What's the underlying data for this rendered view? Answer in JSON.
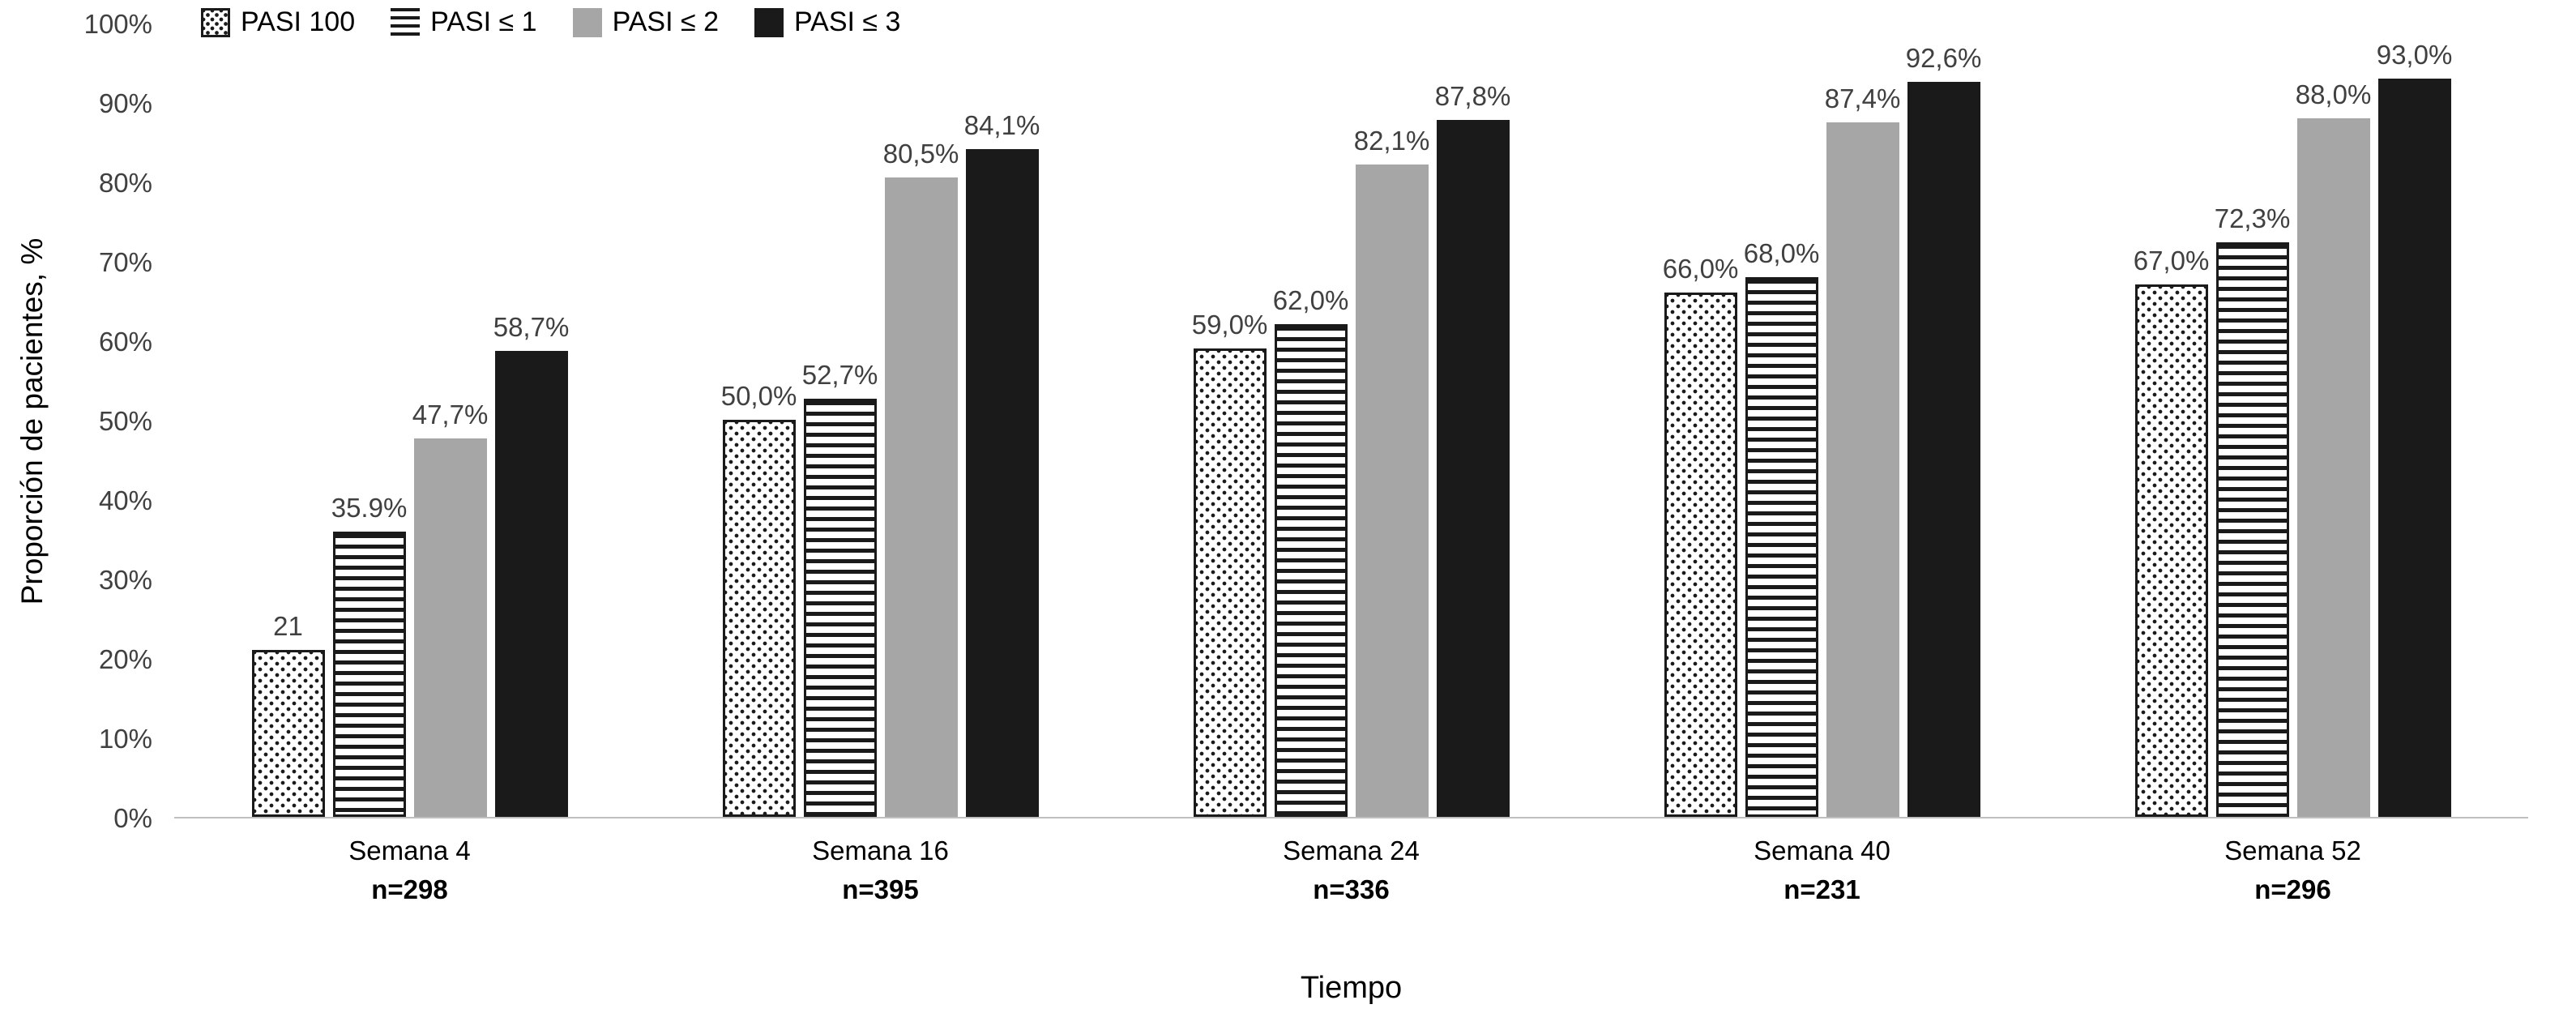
{
  "chart_data": {
    "type": "bar",
    "title": "",
    "xlabel": "Tiempo",
    "ylabel": "Proporción de pacientes, %",
    "ylim": [
      0,
      100
    ],
    "ytick_step": 10,
    "ytick_labels": [
      "0%",
      "10%",
      "20%",
      "30%",
      "40%",
      "50%",
      "60%",
      "70%",
      "80%",
      "90%",
      "100%"
    ],
    "grid": false,
    "legend_position": "top-left",
    "categories": [
      {
        "key": "semana-4",
        "label": "Semana 4",
        "n_label": "n=298"
      },
      {
        "key": "semana-16",
        "label": "Semana 16",
        "n_label": "n=395"
      },
      {
        "key": "semana-24",
        "label": "Semana 24",
        "n_label": "n=336"
      },
      {
        "key": "semana-40",
        "label": "Semana 40",
        "n_label": "n=231"
      },
      {
        "key": "semana-52",
        "label": "Semana 52",
        "n_label": "n=296"
      }
    ],
    "series": [
      {
        "key": "pasi-100",
        "name": "PASI 100",
        "fill": "dots",
        "color": "#ffffff",
        "values": [
          21,
          50.0,
          59.0,
          66.0,
          67.0
        ],
        "labels": [
          "21",
          "50,0%",
          "59,0%",
          "66,0%",
          "67,0%"
        ]
      },
      {
        "key": "pasi-le-1",
        "name": "PASI ≤ 1",
        "fill": "hlines",
        "color": "#ffffff",
        "values": [
          35.9,
          52.7,
          62.0,
          68.0,
          72.3
        ],
        "labels": [
          "35.9%",
          "52,7%",
          "62,0%",
          "68,0%",
          "72,3%"
        ]
      },
      {
        "key": "pasi-le-2",
        "name": "PASI ≤ 2",
        "fill": "solid",
        "color": "#a6a6a6",
        "values": [
          47.7,
          80.5,
          82.1,
          87.4,
          88.0
        ],
        "labels": [
          "47,7%",
          "80,5%",
          "82,1%",
          "87,4%",
          "88,0%"
        ]
      },
      {
        "key": "pasi-le-3",
        "name": "PASI ≤ 3",
        "fill": "solid",
        "color": "#1a1a1a",
        "values": [
          58.7,
          84.1,
          87.8,
          92.6,
          93.0
        ],
        "labels": [
          "58,7%",
          "84,1%",
          "87,8%",
          "92,6%",
          "93,0%"
        ]
      }
    ],
    "colors": {
      "label_text": "#404040",
      "axis_line": "#bfbfbf",
      "pattern_stroke": "#1a1a1a",
      "solid_gray": "#a6a6a6",
      "solid_black": "#1a1a1a"
    }
  }
}
